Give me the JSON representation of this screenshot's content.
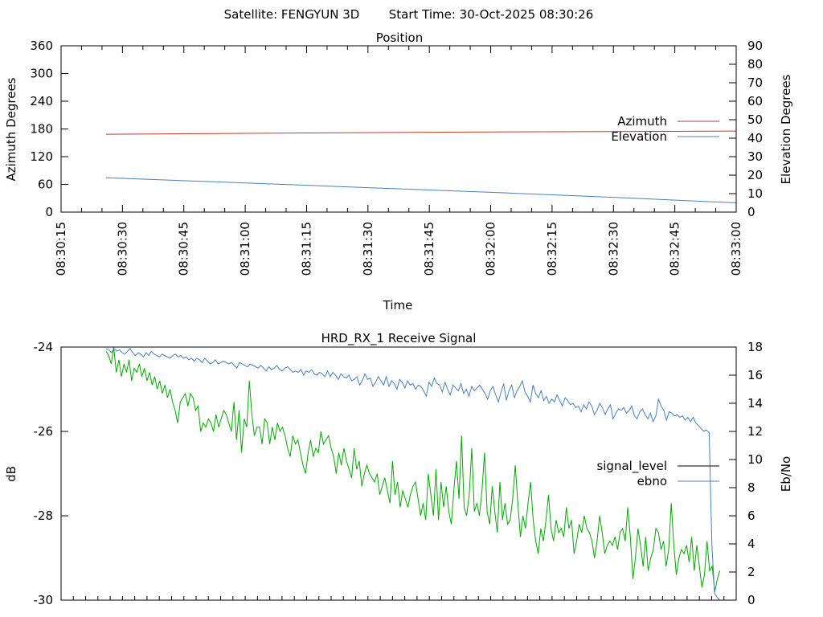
{
  "header": {
    "satellite_label": "Satellite: FENGYUN 3D",
    "start_time_label": "Start Time: 30-Oct-2025 08:30:26"
  },
  "chart_data": [
    {
      "type": "line",
      "title": "Position",
      "xlabel": "Time",
      "ylabel": "Azimuth Degrees",
      "y2label": "Elevation Degrees",
      "x_ticks": [
        "08:30:15",
        "08:30:30",
        "08:30:45",
        "08:31:00",
        "08:31:15",
        "08:31:30",
        "08:31:45",
        "08:32:00",
        "08:32:15",
        "08:32:30",
        "08:32:45",
        "08:33:00"
      ],
      "x_range_seconds": [
        15,
        180
      ],
      "ylim": [
        0,
        360
      ],
      "y_ticks": [
        0,
        60,
        120,
        180,
        240,
        300,
        360
      ],
      "y2lim": [
        0,
        90
      ],
      "y2_ticks": [
        0,
        10,
        20,
        30,
        40,
        50,
        60,
        70,
        80,
        90
      ],
      "legend_position": "right",
      "series": [
        {
          "name": "Azimuth",
          "axis": "y1",
          "color": "#c0392b",
          "x": [
            26,
            60,
            90,
            120,
            150,
            180
          ],
          "y": [
            168.5,
            170.5,
            172,
            173.5,
            174.5,
            175.5
          ]
        },
        {
          "name": "Elevation",
          "axis": "y2",
          "color": "#4a7fc0",
          "x": [
            26,
            60,
            90,
            120,
            150,
            180
          ],
          "y": [
            18.6,
            15.8,
            13.2,
            10.7,
            8.0,
            5.0
          ]
        }
      ]
    },
    {
      "type": "line",
      "title": "HRD_RX_1 Receive Signal",
      "xlabel": "",
      "ylabel": "dB",
      "y2label": "Eb/No",
      "x_range_seconds": [
        15,
        180
      ],
      "x_minor_tick_step_seconds": 3,
      "ylim": [
        -30,
        -24
      ],
      "y_ticks": [
        -30,
        -28,
        -26,
        -24
      ],
      "y2lim": [
        0,
        18
      ],
      "y2_ticks": [
        0,
        2,
        4,
        6,
        8,
        10,
        12,
        14,
        16,
        18
      ],
      "legend_position": "right",
      "series": [
        {
          "name": "signal_level",
          "axis": "y1",
          "legend_color": "#000000",
          "color": "#00aa00",
          "x_start": 26,
          "x_step": 1,
          "values": [
            -24.1,
            -24.2,
            -24.4,
            -24.0,
            -24.6,
            -24.3,
            -24.7,
            -24.4,
            -24.6,
            -24.3,
            -24.8,
            -24.5,
            -24.6,
            -24.4,
            -24.7,
            -24.5,
            -24.8,
            -24.6,
            -24.9,
            -24.7,
            -25.0,
            -24.8,
            -25.1,
            -24.9,
            -25.2,
            -25.0,
            -25.3,
            -25.5,
            -25.8,
            -25.3,
            -25.2,
            -25.1,
            -25.4,
            -25.1,
            -25.2,
            -25.5,
            -25.4,
            -26.0,
            -25.8,
            -25.9,
            -25.7,
            -25.8,
            -26.0,
            -25.6,
            -25.9,
            -25.7,
            -25.5,
            -25.6,
            -25.8,
            -26.0,
            -25.3,
            -26.2,
            -25.5,
            -26.5,
            -25.7,
            -25.9,
            -24.8,
            -25.6,
            -26.1,
            -25.9,
            -25.9,
            -26.3,
            -25.7,
            -25.8,
            -26.3,
            -25.9,
            -26.2,
            -25.8,
            -26.0,
            -25.9,
            -26.1,
            -26.4,
            -26.6,
            -26.1,
            -26.3,
            -26.2,
            -26.5,
            -26.8,
            -27.0,
            -26.5,
            -26.2,
            -26.6,
            -26.4,
            -26.5,
            -26.0,
            -26.3,
            -26.2,
            -26.1,
            -26.4,
            -26.6,
            -27.0,
            -26.5,
            -26.8,
            -26.4,
            -26.7,
            -26.9,
            -27.1,
            -26.4,
            -26.9,
            -26.7,
            -27.3,
            -27.0,
            -26.8,
            -27.0,
            -27.1,
            -27.2,
            -27.0,
            -27.5,
            -27.3,
            -27.1,
            -27.4,
            -27.7,
            -26.7,
            -27.5,
            -27.2,
            -27.8,
            -27.4,
            -27.6,
            -27.8,
            -27.5,
            -27.3,
            -27.2,
            -27.6,
            -28.0,
            -27.7,
            -28.1,
            -27.0,
            -27.5,
            -28.0,
            -26.9,
            -28.1,
            -27.2,
            -27.8,
            -27.3,
            -27.9,
            -28.2,
            -27.4,
            -26.7,
            -27.6,
            -26.1,
            -27.8,
            -28.0,
            -27.5,
            -26.4,
            -27.9,
            -27.7,
            -28.0,
            -27.4,
            -26.5,
            -27.9,
            -28.2,
            -27.3,
            -27.9,
            -28.4,
            -27.2,
            -28.1,
            -27.7,
            -28.2,
            -28.1,
            -27.6,
            -26.8,
            -27.7,
            -28.5,
            -28.0,
            -28.3,
            -27.7,
            -27.2,
            -28.1,
            -28.6,
            -28.9,
            -28.3,
            -28.6,
            -28.1,
            -27.5,
            -28.3,
            -28.6,
            -28.1,
            -28.4,
            -28.3,
            -28.5,
            -27.8,
            -28.3,
            -28.1,
            -28.9,
            -28.6,
            -28.2,
            -28.4,
            -28.0,
            -28.3,
            -28.4,
            -28.6,
            -29.0,
            -28.6,
            -28.0,
            -28.4,
            -28.9,
            -28.7,
            -28.6,
            -28.7,
            -28.5,
            -28.8,
            -28.4,
            -28.3,
            -28.6,
            -27.8,
            -28.5,
            -29.5,
            -29.0,
            -28.3,
            -28.7,
            -29.2,
            -28.5,
            -29.3,
            -29.0,
            -28.8,
            -28.3,
            -28.4,
            -28.8,
            -28.6,
            -29.2,
            -28.8,
            -27.7,
            -28.7,
            -29.4,
            -29.0,
            -28.8,
            -28.9,
            -28.7,
            -29.1,
            -28.5,
            -29.3,
            -28.7,
            -29.2,
            -29.7,
            -29.4,
            -28.6,
            -29.3,
            -29.2,
            -29.8,
            -29.5,
            -29.3
          ]
        },
        {
          "name": "ebno",
          "axis": "y2",
          "color": "#4a7fc0",
          "x_start": 26,
          "x_step": 1,
          "values": [
            17.9,
            17.8,
            17.6,
            17.9,
            17.7,
            17.8,
            17.6,
            17.5,
            17.7,
            17.9,
            17.6,
            17.4,
            17.6,
            17.5,
            17.3,
            17.6,
            17.4,
            17.7,
            17.5,
            17.4,
            17.3,
            17.5,
            17.4,
            17.3,
            17.2,
            17.4,
            17.5,
            17.3,
            17.4,
            17.2,
            17.3,
            17.1,
            17.2,
            17.0,
            17.2,
            17.1,
            16.9,
            17.2,
            17.0,
            16.8,
            16.9,
            17.1,
            16.8,
            16.9,
            17.0,
            16.9,
            16.8,
            16.9,
            16.7,
            16.5,
            16.9,
            16.8,
            16.7,
            16.6,
            16.8,
            16.7,
            16.6,
            16.5,
            16.7,
            16.5,
            16.3,
            16.6,
            16.4,
            16.5,
            16.7,
            16.4,
            16.3,
            16.5,
            16.6,
            16.4,
            16.2,
            16.3,
            16.2,
            16.4,
            16.0,
            16.3,
            16.2,
            16.4,
            16.1,
            16.0,
            16.2,
            16.1,
            15.9,
            16.3,
            15.9,
            16.2,
            16.0,
            15.7,
            16.1,
            15.9,
            15.8,
            16.0,
            15.6,
            15.7,
            15.9,
            15.3,
            15.6,
            16.1,
            15.7,
            15.8,
            15.2,
            15.5,
            15.9,
            15.6,
            15.3,
            15.9,
            15.2,
            15.6,
            15.4,
            15.0,
            15.7,
            15.5,
            15.1,
            15.6,
            15.3,
            15.4,
            15.0,
            15.3,
            15.2,
            14.9,
            14.5,
            15.5,
            15.2,
            15.8,
            15.4,
            15.3,
            14.8,
            15.5,
            15.0,
            14.6,
            15.3,
            15.1,
            14.9,
            15.4,
            14.7,
            15.0,
            14.5,
            15.2,
            14.9,
            15.1,
            15.3,
            15.0,
            14.7,
            14.3,
            14.9,
            15.2,
            14.6,
            14.1,
            14.8,
            15.4,
            14.2,
            14.9,
            15.3,
            14.4,
            14.9,
            15.2,
            15.6,
            14.8,
            14.5,
            14.1,
            15.3,
            14.7,
            14.4,
            14.9,
            14.2,
            14.5,
            14.0,
            14.3,
            14.1,
            14.6,
            14.2,
            13.8,
            14.4,
            14.2,
            13.9,
            14.0,
            13.7,
            13.8,
            13.4,
            13.9,
            13.6,
            14.1,
            13.8,
            13.2,
            13.5,
            14.0,
            13.7,
            13.2,
            13.6,
            13.9,
            12.9,
            13.3,
            13.6,
            13.5,
            13.7,
            13.3,
            13.5,
            13.8,
            13.1,
            12.9,
            13.4,
            13.6,
            13.2,
            12.9,
            13.3,
            12.7,
            13.1,
            14.3,
            13.8,
            13.5,
            12.8,
            13.4,
            13.3,
            13.1,
            13.2,
            13.0,
            13.1,
            12.8,
            13.0,
            12.7,
            13.0,
            12.6,
            12.4,
            12.2,
            12.0,
            12.1,
            11.9,
            4.0,
            0.5,
            0.2,
            0.0
          ]
        }
      ]
    }
  ]
}
